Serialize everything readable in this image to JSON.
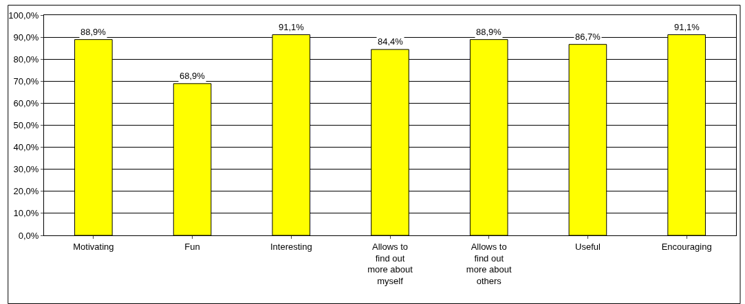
{
  "chart_data": {
    "type": "bar",
    "categories": [
      "Motivating",
      "Fun",
      "Interesting",
      "Allows to find out more about myself",
      "Allows to find out more about others",
      "Useful",
      "Encouraging"
    ],
    "values": [
      88.9,
      68.9,
      91.1,
      84.4,
      88.9,
      86.7,
      91.1
    ],
    "value_labels": [
      "88,9%",
      "68,9%",
      "91,1%",
      "84,4%",
      "88,9%",
      "86,7%",
      "91,1%"
    ],
    "color": "#ffff00",
    "ylim": [
      0,
      100
    ],
    "yticks": [
      {
        "value": 0,
        "label": "0,0%"
      },
      {
        "value": 10,
        "label": "10,0%"
      },
      {
        "value": 20,
        "label": "20,0%"
      },
      {
        "value": 30,
        "label": "30,0%"
      },
      {
        "value": 40,
        "label": "40,0%"
      },
      {
        "value": 50,
        "label": "50,0%"
      },
      {
        "value": 60,
        "label": "60,0%"
      },
      {
        "value": 70,
        "label": "70,0%"
      },
      {
        "value": 80,
        "label": "80,0%"
      },
      {
        "value": 90,
        "label": "90,0%"
      },
      {
        "value": 100,
        "label": "100,0%"
      }
    ],
    "grid": "y",
    "legend": false
  }
}
